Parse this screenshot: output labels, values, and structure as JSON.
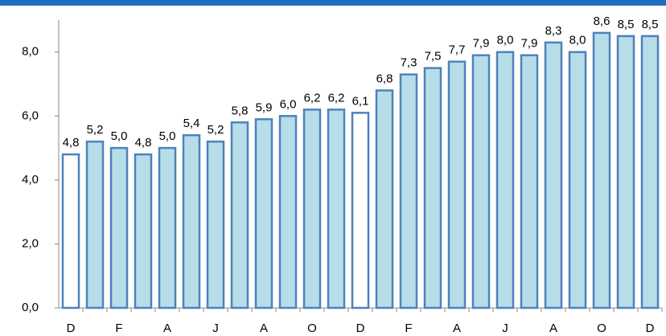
{
  "chart_data": {
    "type": "bar",
    "categories": [
      "D",
      null,
      "F",
      null,
      "A",
      null,
      "J",
      null,
      "A",
      null,
      "O",
      null,
      "D",
      null,
      "F",
      null,
      "A",
      null,
      "J",
      null,
      "A",
      null,
      "O",
      null,
      "D"
    ],
    "values": [
      4.8,
      5.2,
      5.0,
      4.8,
      5.0,
      5.4,
      5.2,
      5.8,
      5.9,
      6.0,
      6.2,
      6.2,
      6.1,
      6.8,
      7.3,
      7.5,
      7.7,
      7.9,
      8.0,
      7.9,
      8.3,
      8.0,
      8.6,
      8.5,
      8.5
    ],
    "value_labels": [
      "4,8",
      "5,2",
      "5,0",
      "4,8",
      "5,0",
      "5,4",
      "5,2",
      "5,8",
      "5,9",
      "6,0",
      "6,2",
      "6,2",
      "6,1",
      "6,8",
      "7,3",
      "7,5",
      "7,7",
      "7,9",
      "8,0",
      "7,9",
      "8,3",
      "8,0",
      "8,6",
      "8,5",
      "8,5"
    ],
    "colors": [
      "#ffffff",
      "#b7dde8",
      "#b7dde8",
      "#b7dde8",
      "#b7dde8",
      "#b7dde8",
      "#b7dde8",
      "#b7dde8",
      "#b7dde8",
      "#b7dde8",
      "#b7dde8",
      "#b7dde8",
      "#ffffff",
      "#b7dde8",
      "#b7dde8",
      "#b7dde8",
      "#b7dde8",
      "#b7dde8",
      "#b7dde8",
      "#b7dde8",
      "#b7dde8",
      "#b7dde8",
      "#b7dde8",
      "#b7dde8",
      "#b7dde8"
    ],
    "edge_color": "#4f81bd",
    "ylim": [
      0,
      9
    ],
    "yticks": [
      {
        "value": 0,
        "label": "0,0"
      },
      {
        "value": 2,
        "label": "2,0"
      },
      {
        "value": 4,
        "label": "4,0"
      },
      {
        "value": 6,
        "label": "6,0"
      },
      {
        "value": 8,
        "label": "8,0"
      }
    ],
    "grid": false
  }
}
